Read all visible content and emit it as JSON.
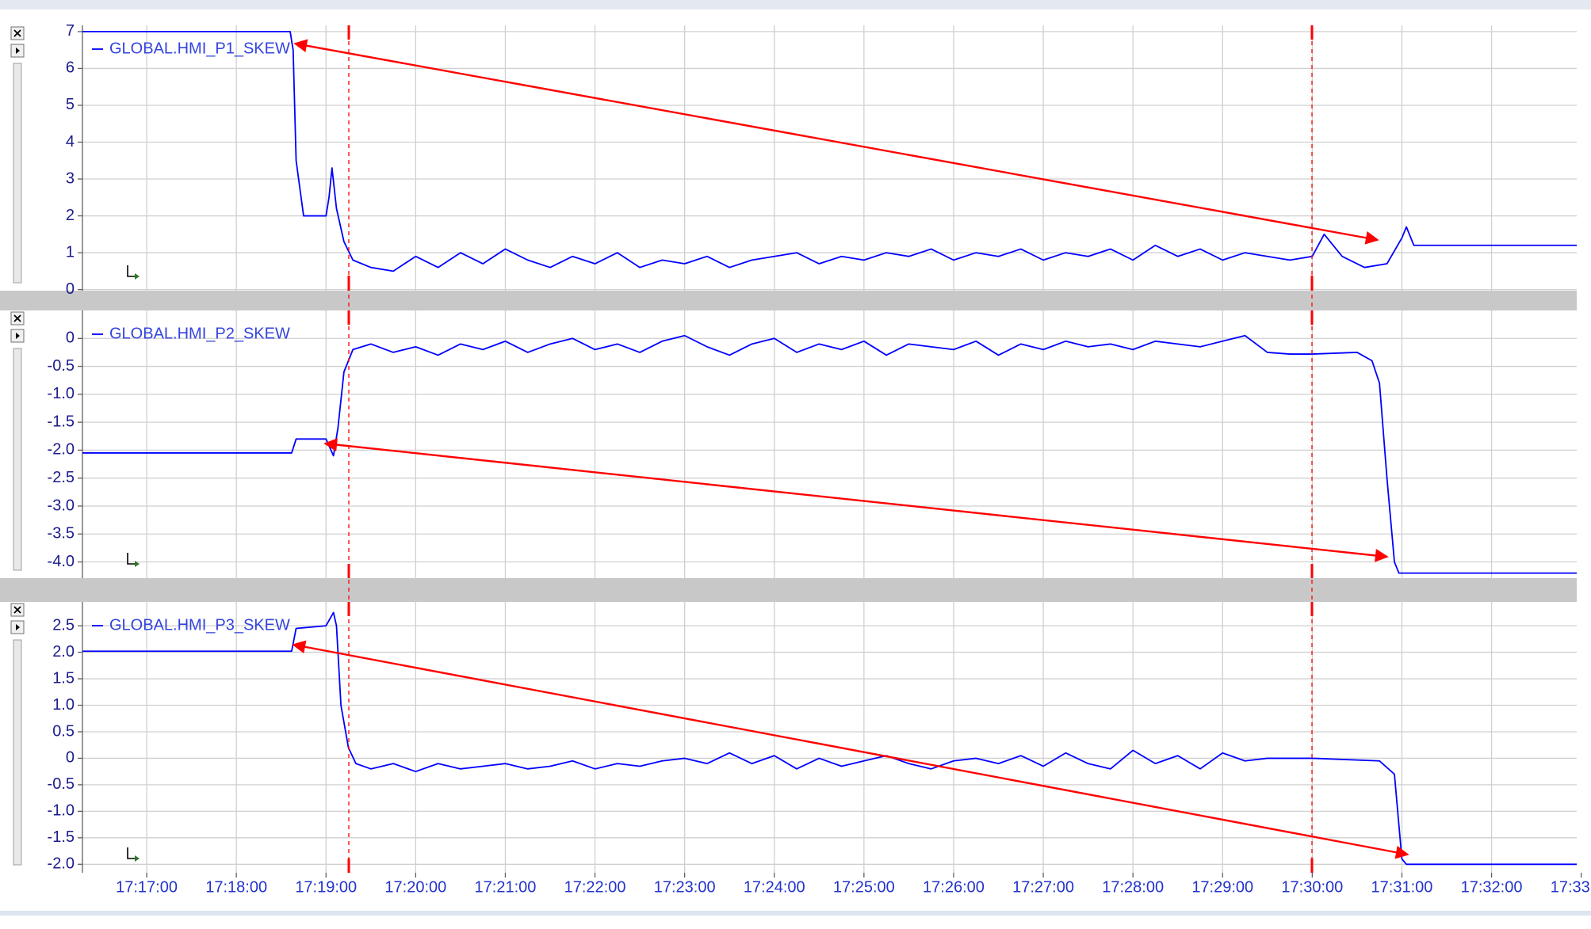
{
  "chart_data": [
    {
      "type": "line",
      "x": [
        "17:16:17",
        "17:18:36",
        "17:18:38",
        "17:18:40",
        "17:18:45",
        "17:19:00",
        "17:19:02",
        "17:19:04",
        "17:19:07",
        "17:19:12",
        "17:19:18",
        "17:19:30",
        "17:19:45",
        "17:20:00",
        "17:20:15",
        "17:20:30",
        "17:20:45",
        "17:21:00",
        "17:21:15",
        "17:21:30",
        "17:21:45",
        "17:22:00",
        "17:22:15",
        "17:22:30",
        "17:22:45",
        "17:23:00",
        "17:23:15",
        "17:23:30",
        "17:23:45",
        "17:24:00",
        "17:24:15",
        "17:24:30",
        "17:24:45",
        "17:25:00",
        "17:25:15",
        "17:25:30",
        "17:25:45",
        "17:26:00",
        "17:26:15",
        "17:26:30",
        "17:26:45",
        "17:27:00",
        "17:27:15",
        "17:27:30",
        "17:27:45",
        "17:28:00",
        "17:28:15",
        "17:28:30",
        "17:28:45",
        "17:29:00",
        "17:29:15",
        "17:29:30",
        "17:29:45",
        "17:30:00",
        "17:30:08",
        "17:30:20",
        "17:30:35",
        "17:30:50",
        "17:31:00",
        "17:31:03",
        "17:31:08",
        "17:32:57"
      ],
      "xlim": [
        "17:16:17",
        "17:32:57"
      ],
      "ylim": [
        -0.03,
        7.17
      ],
      "yticks": [
        0,
        1,
        2,
        3,
        4,
        5,
        6,
        7
      ],
      "grid": true,
      "series": [
        {
          "name": "GLOBAL.HMI_P1_SKEW",
          "color": "#0000ff",
          "values": [
            7,
            7,
            6.5,
            3.5,
            2.0,
            2.0,
            2.5,
            3.3,
            2.2,
            1.3,
            0.8,
            0.6,
            0.5,
            0.9,
            0.6,
            1.0,
            0.7,
            1.1,
            0.8,
            0.6,
            0.9,
            0.7,
            1.0,
            0.6,
            0.8,
            0.7,
            0.9,
            0.6,
            0.8,
            0.9,
            1.0,
            0.7,
            0.9,
            0.8,
            1.0,
            0.9,
            1.1,
            0.8,
            1.0,
            0.9,
            1.1,
            0.8,
            1.0,
            0.9,
            1.1,
            0.8,
            1.2,
            0.9,
            1.1,
            0.8,
            1.0,
            0.9,
            0.8,
            0.9,
            1.5,
            0.9,
            0.6,
            0.7,
            1.4,
            1.7,
            1.2,
            1.2
          ]
        }
      ]
    },
    {
      "type": "line",
      "x": [
        "17:16:17",
        "17:18:37",
        "17:18:40",
        "17:19:00",
        "17:19:05",
        "17:19:08",
        "17:19:12",
        "17:19:18",
        "17:19:30",
        "17:19:45",
        "17:20:00",
        "17:20:15",
        "17:20:30",
        "17:20:45",
        "17:21:00",
        "17:21:15",
        "17:21:30",
        "17:21:45",
        "17:22:00",
        "17:22:15",
        "17:22:30",
        "17:22:45",
        "17:23:00",
        "17:23:15",
        "17:23:30",
        "17:23:45",
        "17:24:00",
        "17:24:15",
        "17:24:30",
        "17:24:45",
        "17:25:00",
        "17:25:15",
        "17:25:30",
        "17:25:45",
        "17:26:00",
        "17:26:15",
        "17:26:30",
        "17:26:45",
        "17:27:00",
        "17:27:15",
        "17:27:30",
        "17:27:45",
        "17:28:00",
        "17:28:15",
        "17:28:30",
        "17:28:45",
        "17:29:00",
        "17:29:15",
        "17:29:30",
        "17:29:45",
        "17:30:00",
        "17:30:30",
        "17:30:40",
        "17:30:45",
        "17:30:50",
        "17:30:55",
        "17:30:58",
        "17:32:57"
      ],
      "xlim": [
        "17:16:17",
        "17:32:57"
      ],
      "ylim": [
        -4.29,
        0.5
      ],
      "yticks": [
        0,
        -0.5,
        {
          "value": -1,
          "label": "-1.0"
        },
        -1.5,
        {
          "value": -2,
          "label": "-2.0"
        },
        -2.5,
        {
          "value": -3,
          "label": "-3.0"
        },
        -3.5,
        {
          "value": -4,
          "label": "-4.0"
        }
      ],
      "grid": true,
      "series": [
        {
          "name": "GLOBAL.HMI_P2_SKEW",
          "color": "#0000ff",
          "values": [
            -2.05,
            -2.05,
            -1.8,
            -1.8,
            -2.1,
            -1.6,
            -0.6,
            -0.2,
            -0.1,
            -0.25,
            -0.15,
            -0.3,
            -0.1,
            -0.2,
            -0.05,
            -0.25,
            -0.1,
            0.0,
            -0.2,
            -0.1,
            -0.25,
            -0.05,
            0.05,
            -0.15,
            -0.3,
            -0.1,
            0.0,
            -0.25,
            -0.1,
            -0.2,
            -0.05,
            -0.3,
            -0.1,
            -0.15,
            -0.2,
            -0.05,
            -0.3,
            -0.1,
            -0.2,
            -0.05,
            -0.15,
            -0.1,
            -0.2,
            -0.05,
            -0.1,
            -0.15,
            -0.05,
            0.05,
            -0.25,
            -0.28,
            -0.28,
            -0.25,
            -0.4,
            -0.8,
            -2.5,
            -4.0,
            -4.2,
            -4.2
          ]
        }
      ]
    },
    {
      "type": "line",
      "x": [
        "17:16:17",
        "17:18:37",
        "17:18:40",
        "17:19:00",
        "17:19:05",
        "17:19:07",
        "17:19:10",
        "17:19:15",
        "17:19:20",
        "17:19:30",
        "17:19:45",
        "17:20:00",
        "17:20:15",
        "17:20:30",
        "17:20:45",
        "17:21:00",
        "17:21:15",
        "17:21:30",
        "17:21:45",
        "17:22:00",
        "17:22:15",
        "17:22:30",
        "17:22:45",
        "17:23:00",
        "17:23:15",
        "17:23:30",
        "17:23:45",
        "17:24:00",
        "17:24:15",
        "17:24:30",
        "17:24:45",
        "17:25:00",
        "17:25:15",
        "17:25:30",
        "17:25:45",
        "17:26:00",
        "17:26:15",
        "17:26:30",
        "17:26:45",
        "17:27:00",
        "17:27:15",
        "17:27:30",
        "17:27:45",
        "17:28:00",
        "17:28:15",
        "17:28:30",
        "17:28:45",
        "17:29:00",
        "17:29:15",
        "17:29:30",
        "17:29:45",
        "17:30:00",
        "17:30:45",
        "17:30:55",
        "17:31:00",
        "17:31:03",
        "17:32:57"
      ],
      "xlim": [
        "17:16:17",
        "17:32:57"
      ],
      "xticks": [
        "17:17:00",
        "17:18:00",
        "17:19:00",
        "17:20:00",
        "17:21:00",
        "17:22:00",
        "17:23:00",
        "17:24:00",
        "17:25:00",
        "17:26:00",
        "17:27:00",
        "17:28:00",
        "17:29:00",
        "17:30:00",
        "17:31:00",
        "17:32:00",
        "17:33:00"
      ],
      "ylim": [
        -2.16,
        2.95
      ],
      "yticks": [
        2.5,
        {
          "value": 2,
          "label": "2.0"
        },
        1.5,
        {
          "value": 1,
          "label": "1.0"
        },
        0.5,
        0,
        -0.5,
        {
          "value": -1,
          "label": "-1.0"
        },
        -1.5,
        {
          "value": -2,
          "label": "-2.0"
        }
      ],
      "grid": true,
      "series": [
        {
          "name": "GLOBAL.HMI_P3_SKEW",
          "color": "#0000ff",
          "values": [
            2.02,
            2.02,
            2.45,
            2.5,
            2.75,
            2.5,
            1.0,
            0.2,
            -0.1,
            -0.2,
            -0.1,
            -0.25,
            -0.1,
            -0.2,
            -0.15,
            -0.1,
            -0.2,
            -0.15,
            -0.05,
            -0.2,
            -0.1,
            -0.15,
            -0.05,
            0.0,
            -0.1,
            0.1,
            -0.1,
            0.05,
            -0.2,
            0.0,
            -0.15,
            -0.05,
            0.05,
            -0.1,
            -0.2,
            -0.05,
            0.0,
            -0.1,
            0.05,
            -0.15,
            0.1,
            -0.1,
            -0.2,
            0.15,
            -0.1,
            0.05,
            -0.2,
            0.1,
            -0.05,
            0.0,
            0.0,
            0.0,
            -0.05,
            -0.3,
            -1.9,
            -2.0,
            -2.0
          ]
        }
      ]
    }
  ]
}
